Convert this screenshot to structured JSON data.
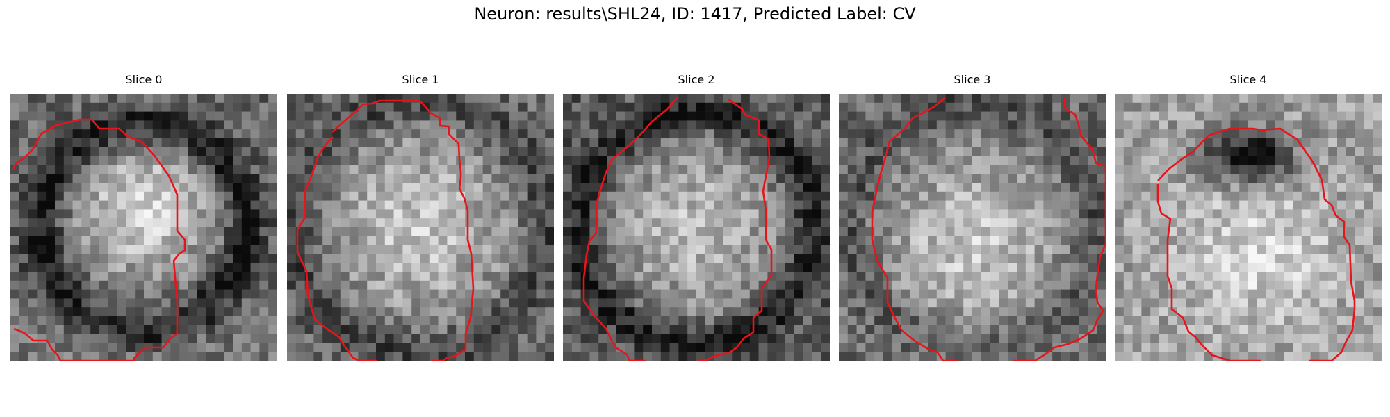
{
  "figure": {
    "title": "Neuron: results\\SHL24, ID: 1417, Predicted Label: CV"
  },
  "colors": {
    "contour": "#e8141b",
    "background": "#ffffff"
  },
  "panels": [
    {
      "title": "Slice 0",
      "cell": "bright center, dark ring"
    },
    {
      "title": "Slice 1",
      "cell": "large bright body"
    },
    {
      "title": "Slice 2",
      "cell": "bright body with dark rim"
    },
    {
      "title": "Slice 3",
      "cell": "bright body, dark top"
    },
    {
      "title": "Slice 4",
      "cell": "dark blob top, bright lower body"
    }
  ]
}
